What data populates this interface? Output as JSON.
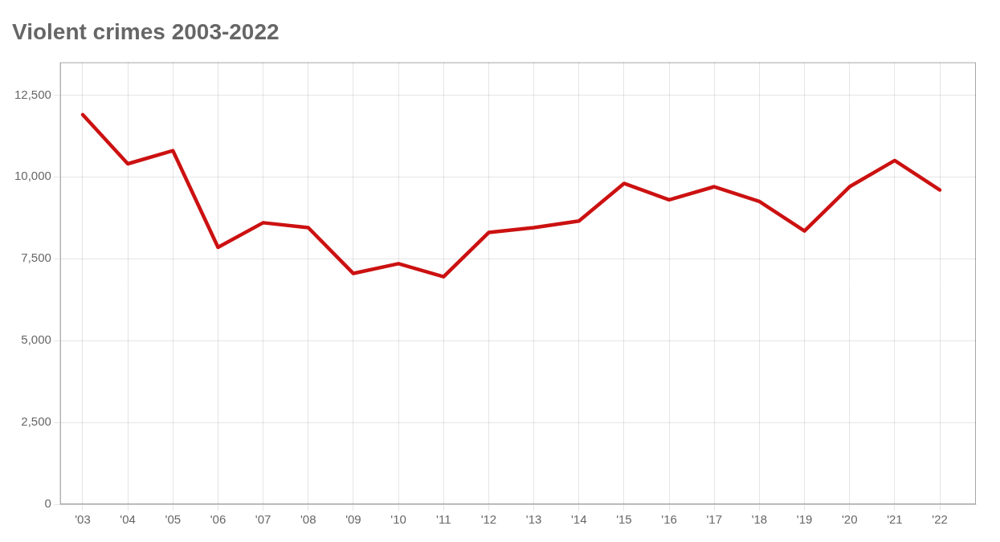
{
  "chart_data": {
    "type": "line",
    "title": "Violent crimes 2003-2022",
    "x": [
      2003,
      2004,
      2005,
      2006,
      2007,
      2008,
      2009,
      2010,
      2011,
      2012,
      2013,
      2014,
      2015,
      2016,
      2017,
      2018,
      2019,
      2020,
      2021,
      2022
    ],
    "values": [
      11900,
      10400,
      10800,
      7850,
      8600,
      8450,
      7050,
      7350,
      6950,
      8300,
      8450,
      8650,
      9800,
      9300,
      9700,
      9250,
      8350,
      9700,
      10500,
      9600
    ],
    "color": "#cc1111",
    "xlim": [
      2002.5,
      2022.8
    ],
    "xticks": [
      {
        "value": 2003,
        "label": "'03"
      },
      {
        "value": 2004,
        "label": "'04"
      },
      {
        "value": 2005,
        "label": "'05"
      },
      {
        "value": 2006,
        "label": "'06"
      },
      {
        "value": 2007,
        "label": "'07"
      },
      {
        "value": 2008,
        "label": "'08"
      },
      {
        "value": 2009,
        "label": "'09"
      },
      {
        "value": 2010,
        "label": "'10"
      },
      {
        "value": 2011,
        "label": "'11"
      },
      {
        "value": 2012,
        "label": "'12"
      },
      {
        "value": 2013,
        "label": "'13"
      },
      {
        "value": 2014,
        "label": "'14"
      },
      {
        "value": 2015,
        "label": "'15"
      },
      {
        "value": 2016,
        "label": "'16"
      },
      {
        "value": 2017,
        "label": "'17"
      },
      {
        "value": 2018,
        "label": "'18"
      },
      {
        "value": 2019,
        "label": "'19"
      },
      {
        "value": 2020,
        "label": "'20"
      },
      {
        "value": 2021,
        "label": "'21"
      },
      {
        "value": 2022,
        "label": "'22"
      }
    ],
    "ylim": [
      0,
      13500
    ],
    "yticks": [
      0,
      {
        "value": 2500,
        "label": "2,500"
      },
      {
        "value": 5000,
        "label": "5,000"
      },
      {
        "value": 7500,
        "label": "7,500"
      },
      {
        "value": 10000,
        "label": "10,000"
      },
      {
        "value": 12500,
        "label": "12,500"
      }
    ],
    "grid": true
  }
}
